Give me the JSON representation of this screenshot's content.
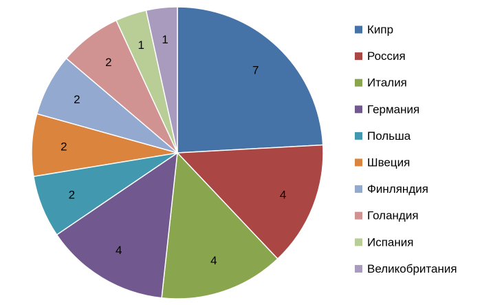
{
  "chart_data": {
    "type": "pie",
    "title": "",
    "legend_position": "right",
    "categories": [
      "Кипр",
      "Россия",
      "Италия",
      "Германия",
      "Польша",
      "Швеция",
      "Финляндия",
      "Голандия",
      "Испания",
      "Великобритания"
    ],
    "values": [
      7,
      4,
      4,
      4,
      2,
      2,
      2,
      2,
      1,
      1
    ],
    "data_labels": [
      "7",
      "4",
      "4",
      "4",
      "2",
      "2",
      "2",
      "2",
      "1",
      "1"
    ],
    "colors": [
      "#4572A7",
      "#AA4643",
      "#89A54E",
      "#71588F",
      "#4198AF",
      "#DB843D",
      "#93A9CF",
      "#D19392",
      "#B9CD96",
      "#A99BBD"
    ]
  }
}
